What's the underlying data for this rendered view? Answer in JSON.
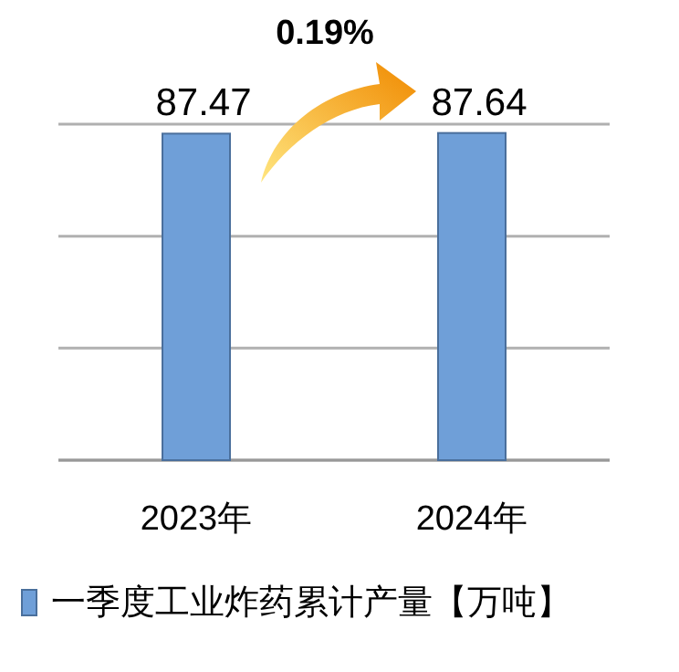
{
  "chart_data": {
    "type": "bar",
    "categories": [
      "2023年",
      "2024年"
    ],
    "series": [
      {
        "name": "一季度工业炸药累计产量【万吨】",
        "color": "#6f9fd8",
        "values": [
          87.47,
          87.64
        ]
      }
    ],
    "ylim": [
      0,
      90
    ],
    "yticks": [
      {
        "value": 0,
        "label": null
      },
      {
        "value": 30,
        "label": null
      },
      {
        "value": 60,
        "label": null
      },
      {
        "value": 90,
        "label": null
      }
    ],
    "grid": "y",
    "legend": "bottom",
    "data_labels": true,
    "annotations": [
      "0.19%"
    ]
  }
}
